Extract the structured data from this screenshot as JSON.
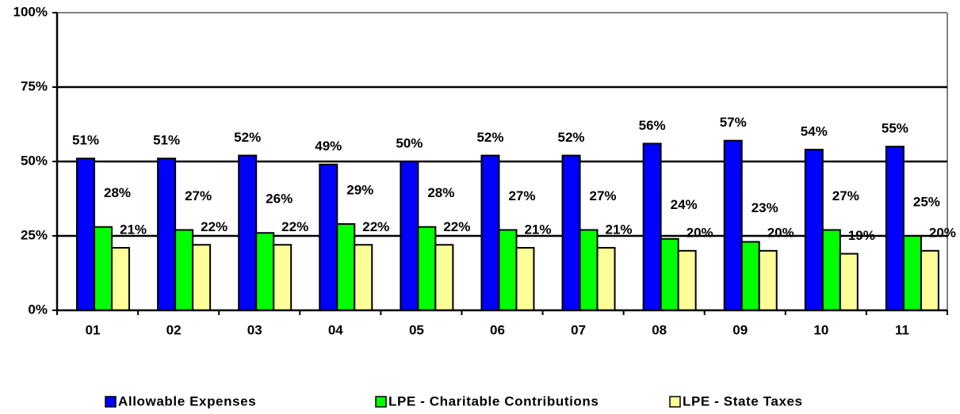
{
  "chart_data": {
    "type": "bar",
    "categories": [
      "01",
      "02",
      "03",
      "04",
      "05",
      "06",
      "07",
      "08",
      "09",
      "10",
      "11"
    ],
    "series": [
      {
        "name": "Allowable Expenses",
        "color": "#0000ff",
        "values": [
          51,
          51,
          52,
          49,
          50,
          52,
          52,
          56,
          57,
          54,
          55
        ],
        "value_labels": [
          "51%",
          "51%",
          "52%",
          "49%",
          "50%",
          "52%",
          "52%",
          "56%",
          "57%",
          "54%",
          "55%"
        ]
      },
      {
        "name": "LPE - Charitable Contributions",
        "color": "#00ff00",
        "values": [
          28,
          27,
          26,
          29,
          28,
          27,
          27,
          24,
          23,
          27,
          25
        ],
        "value_labels": [
          "28%",
          "27%",
          "26%",
          "29%",
          "28%",
          "27%",
          "27%",
          "24%",
          "23%",
          "27%",
          "25%"
        ]
      },
      {
        "name": "LPE - State Taxes",
        "color": "#ffff99",
        "values": [
          21,
          22,
          22,
          22,
          22,
          21,
          21,
          20,
          20,
          19,
          20
        ],
        "value_labels": [
          "21%",
          "22%",
          "22%",
          "22%",
          "22%",
          "21%",
          "21%",
          "20%",
          "20%",
          "19%",
          "20%"
        ]
      }
    ],
    "ylim": [
      0,
      100
    ],
    "yticks": [
      {
        "value": 0,
        "label": "0%"
      },
      {
        "value": 25,
        "label": "25%"
      },
      {
        "value": 50,
        "label": "50%"
      },
      {
        "value": 75,
        "label": "75%"
      },
      {
        "value": 100,
        "label": "100%"
      }
    ],
    "grid": true,
    "legend": "bottom"
  }
}
